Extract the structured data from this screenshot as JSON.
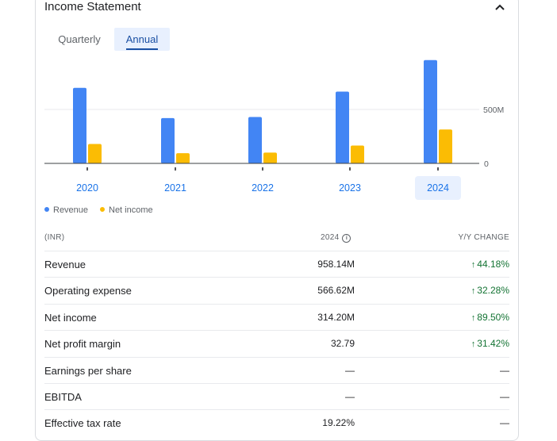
{
  "title": "Income Statement",
  "tabs": [
    {
      "label": "Quarterly"
    },
    {
      "label": "Annual"
    }
  ],
  "chart_data": {
    "type": "bar",
    "categories": [
      "2020",
      "2021",
      "2022",
      "2023",
      "2024"
    ],
    "series": [
      {
        "name": "Revenue",
        "values": [
          700,
          420,
          430,
          665,
          958.14
        ],
        "color": "#4285f4"
      },
      {
        "name": "Net income",
        "values": [
          180,
          95,
          100,
          165,
          314.2
        ],
        "color": "#fbbc04"
      }
    ],
    "y_ticks": [
      {
        "value": 500,
        "label": "500M"
      },
      {
        "value": 0,
        "label": "0"
      }
    ],
    "selected_category": "2024",
    "ylim": [
      0,
      1000
    ]
  },
  "legend": [
    "Revenue",
    "Net income"
  ],
  "table": {
    "col_label": "(INR)",
    "col_year": "2024",
    "col_change": "Y/Y CHANGE",
    "rows": [
      {
        "label": "Revenue",
        "value": "958.14M",
        "change": "44.18%",
        "up": true
      },
      {
        "label": "Operating expense",
        "value": "566.62M",
        "change": "32.28%",
        "up": true
      },
      {
        "label": "Net income",
        "value": "314.20M",
        "change": "89.50%",
        "up": true
      },
      {
        "label": "Net profit margin",
        "value": "32.79",
        "change": "31.42%",
        "up": true
      },
      {
        "label": "Earnings per share",
        "value": "—",
        "change": "—",
        "up": false
      },
      {
        "label": "EBITDA",
        "value": "—",
        "change": "—",
        "up": false
      },
      {
        "label": "Effective tax rate",
        "value": "19.22%",
        "change": "—",
        "up": false
      }
    ]
  }
}
